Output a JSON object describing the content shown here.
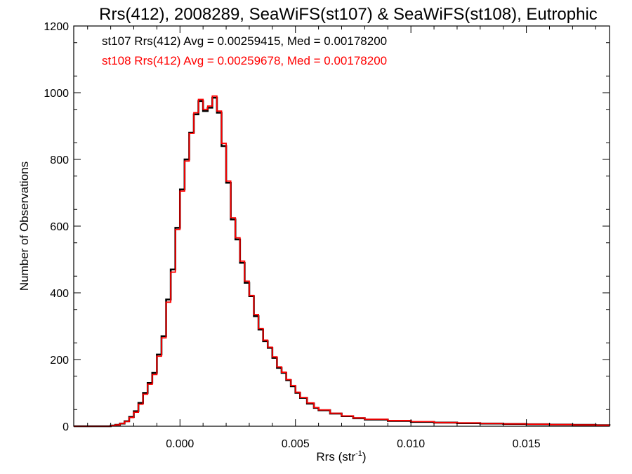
{
  "chart_data": {
    "type": "line",
    "step": true,
    "title": "Rrs(412), 2008289, SeaWiFS(st107) & SeaWiFS(st108), Eutrophic",
    "xlabel_main": "Rrs (str",
    "xlabel_sup": "-1",
    "xlabel_close": ")",
    "ylabel": "Number of Observations",
    "xlim": [
      -0.0046,
      0.0186
    ],
    "ylim": [
      0,
      1200
    ],
    "xticks": [
      0.0,
      0.005,
      0.01,
      0.015
    ],
    "xtick_labels": [
      "0.000",
      "0.005",
      "0.010",
      "0.015"
    ],
    "yticks": [
      0,
      200,
      400,
      600,
      800,
      1000,
      1200
    ],
    "ytick_labels": [
      "0",
      "200",
      "400",
      "600",
      "800",
      "1000",
      "1200"
    ],
    "grid": false,
    "legend": [
      {
        "text": "st107 Rrs(412) Avg = 0.00259415, Med = 0.00178200",
        "color": "#000000"
      },
      {
        "text": "st108 Rrs(412) Avg = 0.00259678, Med = 0.00178200",
        "color": "#ff0000"
      }
    ],
    "series": [
      {
        "color": "#000000",
        "x": [
          -0.0046,
          -0.0035,
          -0.003,
          -0.0028,
          -0.0026,
          -0.0024,
          -0.0022,
          -0.002,
          -0.0018,
          -0.0016,
          -0.0014,
          -0.0012,
          -0.001,
          -0.0008,
          -0.0006,
          -0.0004,
          -0.0002,
          0.0,
          0.0002,
          0.0004,
          0.0006,
          0.0008,
          0.001,
          0.0012,
          0.0014,
          0.0016,
          0.0018,
          0.002,
          0.0022,
          0.0024,
          0.0026,
          0.0028,
          0.003,
          0.0032,
          0.0034,
          0.0036,
          0.0038,
          0.004,
          0.0042,
          0.0044,
          0.0046,
          0.0048,
          0.005,
          0.0052,
          0.0055,
          0.0058,
          0.006,
          0.0065,
          0.007,
          0.0075,
          0.008,
          0.009,
          0.01,
          0.011,
          0.012,
          0.013,
          0.014,
          0.015,
          0.016,
          0.017,
          0.018,
          0.0186
        ],
        "y": [
          0,
          0,
          2,
          4,
          8,
          15,
          28,
          45,
          70,
          100,
          130,
          160,
          215,
          270,
          380,
          470,
          595,
          710,
          800,
          880,
          935,
          975,
          945,
          955,
          985,
          940,
          840,
          730,
          620,
          560,
          490,
          430,
          390,
          330,
          290,
          255,
          235,
          205,
          175,
          160,
          138,
          120,
          100,
          85,
          68,
          55,
          48,
          38,
          30,
          24,
          20,
          16,
          13,
          11,
          9,
          8,
          7,
          6,
          5,
          4,
          3,
          2
        ]
      },
      {
        "color": "#ff0000",
        "x": [
          -0.0046,
          -0.0035,
          -0.003,
          -0.0028,
          -0.0026,
          -0.0024,
          -0.0022,
          -0.002,
          -0.0018,
          -0.0016,
          -0.0014,
          -0.0012,
          -0.001,
          -0.0008,
          -0.0006,
          -0.0004,
          -0.0002,
          0.0,
          0.0002,
          0.0004,
          0.0006,
          0.0008,
          0.001,
          0.0012,
          0.0014,
          0.0016,
          0.0018,
          0.002,
          0.0022,
          0.0024,
          0.0026,
          0.0028,
          0.003,
          0.0032,
          0.0034,
          0.0036,
          0.0038,
          0.004,
          0.0042,
          0.0044,
          0.0046,
          0.0048,
          0.005,
          0.0052,
          0.0055,
          0.0058,
          0.006,
          0.0065,
          0.007,
          0.0075,
          0.008,
          0.009,
          0.01,
          0.011,
          0.012,
          0.013,
          0.014,
          0.015,
          0.016,
          0.017,
          0.018,
          0.0186
        ],
        "y": [
          0,
          0,
          2,
          4,
          8,
          14,
          26,
          42,
          66,
          96,
          126,
          155,
          210,
          265,
          372,
          462,
          590,
          705,
          795,
          878,
          940,
          980,
          950,
          960,
          990,
          945,
          848,
          735,
          625,
          565,
          495,
          435,
          392,
          335,
          293,
          258,
          237,
          208,
          178,
          162,
          140,
          122,
          102,
          86,
          70,
          56,
          49,
          39,
          31,
          25,
          21,
          17,
          14,
          11,
          10,
          8,
          7,
          6,
          5,
          4,
          3,
          2
        ]
      }
    ]
  }
}
